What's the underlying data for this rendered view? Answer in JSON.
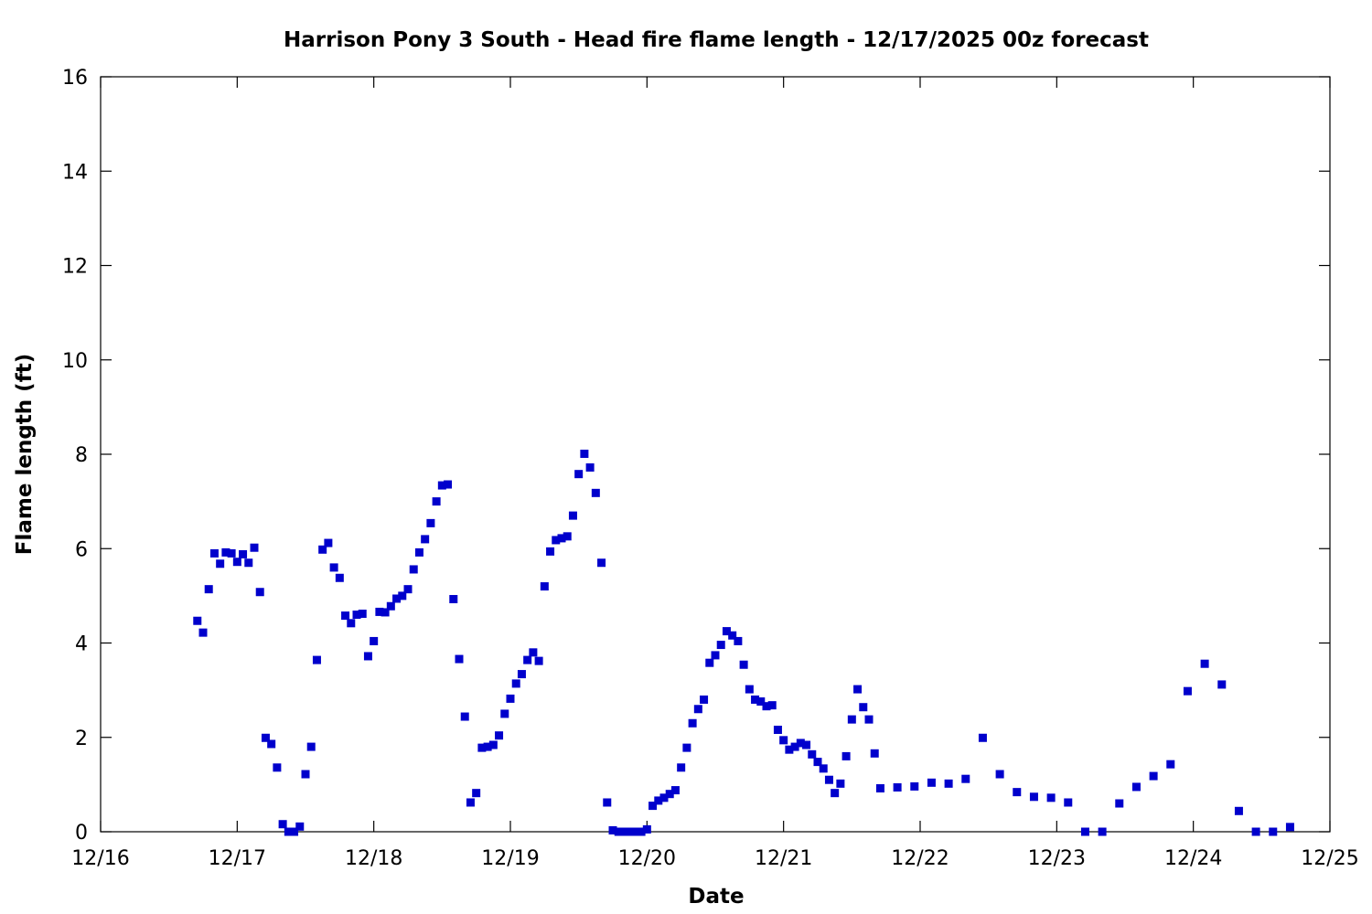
{
  "chart_data": {
    "type": "scatter",
    "title": "Harrison Pony 3 South - Head fire flame length - 12/17/2025 00z forecast",
    "xlabel": "Date",
    "ylabel": "Flame length (ft)",
    "xlim": [
      "12/16 00:00",
      "12/25 00:00"
    ],
    "ylim": [
      0,
      16
    ],
    "x_ticks": [
      "12/16",
      "12/17",
      "12/18",
      "12/19",
      "12/20",
      "12/21",
      "12/22",
      "12/23",
      "12/24",
      "12/25"
    ],
    "y_ticks": [
      "0",
      "2",
      "4",
      "6",
      "8",
      "10",
      "12",
      "14",
      "16"
    ],
    "grid": false,
    "marker": "square",
    "marker_color": "#0000cc",
    "series": [
      {
        "points": [
          [
            "12/16 17:00",
            4.47
          ],
          [
            "12/16 18:00",
            4.22
          ],
          [
            "12/16 19:00",
            5.14
          ],
          [
            "12/16 20:00",
            5.9
          ],
          [
            "12/16 21:00",
            5.68
          ],
          [
            "12/16 22:00",
            5.92
          ],
          [
            "12/16 23:00",
            5.9
          ],
          [
            "12/17 00:00",
            5.72
          ],
          [
            "12/17 01:00",
            5.88
          ],
          [
            "12/17 02:00",
            5.7
          ],
          [
            "12/17 03:00",
            6.02
          ],
          [
            "12/17 04:00",
            5.08
          ],
          [
            "12/17 05:00",
            1.99
          ],
          [
            "12/17 06:00",
            1.86
          ],
          [
            "12/17 07:00",
            1.36
          ],
          [
            "12/17 08:00",
            0.16
          ],
          [
            "12/17 09:00",
            0.0
          ],
          [
            "12/17 10:00",
            0.0
          ],
          [
            "12/17 11:00",
            0.11
          ],
          [
            "12/17 12:00",
            1.22
          ],
          [
            "12/17 13:00",
            1.8
          ],
          [
            "12/17 14:00",
            3.64
          ],
          [
            "12/17 15:00",
            5.98
          ],
          [
            "12/17 16:00",
            6.12
          ],
          [
            "12/17 17:00",
            5.6
          ],
          [
            "12/17 18:00",
            5.38
          ],
          [
            "12/17 19:00",
            4.58
          ],
          [
            "12/17 20:00",
            4.42
          ],
          [
            "12/17 21:00",
            4.6
          ],
          [
            "12/17 22:00",
            4.62
          ],
          [
            "12/17 23:00",
            3.72
          ],
          [
            "12/18 00:00",
            4.04
          ],
          [
            "12/18 01:00",
            4.66
          ],
          [
            "12/18 02:00",
            4.65
          ],
          [
            "12/18 03:00",
            4.78
          ],
          [
            "12/18 04:00",
            4.94
          ],
          [
            "12/18 05:00",
            5.0
          ],
          [
            "12/18 06:00",
            5.14
          ],
          [
            "12/18 07:00",
            5.56
          ],
          [
            "12/18 08:00",
            5.92
          ],
          [
            "12/18 09:00",
            6.2
          ],
          [
            "12/18 10:00",
            6.54
          ],
          [
            "12/18 11:00",
            7.0
          ],
          [
            "12/18 12:00",
            7.34
          ],
          [
            "12/18 13:00",
            7.36
          ],
          [
            "12/18 14:00",
            4.93
          ],
          [
            "12/18 15:00",
            3.66
          ],
          [
            "12/18 16:00",
            2.44
          ],
          [
            "12/18 17:00",
            0.62
          ],
          [
            "12/18 18:00",
            0.82
          ],
          [
            "12/18 19:00",
            1.78
          ],
          [
            "12/18 20:00",
            1.8
          ],
          [
            "12/18 21:00",
            1.84
          ],
          [
            "12/18 22:00",
            2.04
          ],
          [
            "12/18 23:00",
            2.5
          ],
          [
            "12/19 00:00",
            2.82
          ],
          [
            "12/19 01:00",
            3.14
          ],
          [
            "12/19 02:00",
            3.34
          ],
          [
            "12/19 03:00",
            3.64
          ],
          [
            "12/19 04:00",
            3.8
          ],
          [
            "12/19 05:00",
            3.62
          ],
          [
            "12/19 06:00",
            5.2
          ],
          [
            "12/19 07:00",
            5.94
          ],
          [
            "12/19 08:00",
            6.18
          ],
          [
            "12/19 09:00",
            6.22
          ],
          [
            "12/19 10:00",
            6.26
          ],
          [
            "12/19 11:00",
            6.7
          ],
          [
            "12/19 12:00",
            7.58
          ],
          [
            "12/19 13:00",
            8.01
          ],
          [
            "12/19 14:00",
            7.72
          ],
          [
            "12/19 15:00",
            7.18
          ],
          [
            "12/19 16:00",
            5.7
          ],
          [
            "12/19 17:00",
            0.62
          ],
          [
            "12/19 18:00",
            0.03
          ],
          [
            "12/19 19:00",
            0.0
          ],
          [
            "12/19 20:00",
            0.0
          ],
          [
            "12/19 21:00",
            0.0
          ],
          [
            "12/19 22:00",
            0.0
          ],
          [
            "12/19 23:00",
            0.0
          ],
          [
            "12/20 00:00",
            0.05
          ],
          [
            "12/20 01:00",
            0.55
          ],
          [
            "12/20 02:00",
            0.66
          ],
          [
            "12/20 03:00",
            0.72
          ],
          [
            "12/20 04:00",
            0.8
          ],
          [
            "12/20 05:00",
            0.88
          ],
          [
            "12/20 06:00",
            1.36
          ],
          [
            "12/20 07:00",
            1.78
          ],
          [
            "12/20 08:00",
            2.3
          ],
          [
            "12/20 09:00",
            2.6
          ],
          [
            "12/20 10:00",
            2.8
          ],
          [
            "12/20 11:00",
            3.58
          ],
          [
            "12/20 12:00",
            3.74
          ],
          [
            "12/20 13:00",
            3.96
          ],
          [
            "12/20 14:00",
            4.25
          ],
          [
            "12/20 15:00",
            4.16
          ],
          [
            "12/20 16:00",
            4.04
          ],
          [
            "12/20 17:00",
            3.54
          ],
          [
            "12/20 18:00",
            3.02
          ],
          [
            "12/20 19:00",
            2.8
          ],
          [
            "12/20 20:00",
            2.76
          ],
          [
            "12/20 21:00",
            2.66
          ],
          [
            "12/20 22:00",
            2.68
          ],
          [
            "12/20 23:00",
            2.16
          ],
          [
            "12/21 00:00",
            1.94
          ],
          [
            "12/21 01:00",
            1.74
          ],
          [
            "12/21 02:00",
            1.8
          ],
          [
            "12/21 03:00",
            1.88
          ],
          [
            "12/21 04:00",
            1.84
          ],
          [
            "12/21 05:00",
            1.64
          ],
          [
            "12/21 06:00",
            1.48
          ],
          [
            "12/21 07:00",
            1.34
          ],
          [
            "12/21 08:00",
            1.1
          ],
          [
            "12/21 09:00",
            0.82
          ],
          [
            "12/21 10:00",
            1.02
          ],
          [
            "12/21 11:00",
            1.6
          ],
          [
            "12/21 12:00",
            2.38
          ],
          [
            "12/21 13:00",
            3.02
          ],
          [
            "12/21 14:00",
            2.64
          ],
          [
            "12/21 15:00",
            2.38
          ],
          [
            "12/21 16:00",
            1.66
          ],
          [
            "12/21 17:00",
            0.92
          ],
          [
            "12/21 20:00",
            0.94
          ],
          [
            "12/21 23:00",
            0.96
          ],
          [
            "12/22 02:00",
            1.04
          ],
          [
            "12/22 05:00",
            1.02
          ],
          [
            "12/22 08:00",
            1.12
          ],
          [
            "12/22 11:00",
            1.99
          ],
          [
            "12/22 14:00",
            1.22
          ],
          [
            "12/22 17:00",
            0.84
          ],
          [
            "12/22 20:00",
            0.74
          ],
          [
            "12/22 23:00",
            0.72
          ],
          [
            "12/23 02:00",
            0.62
          ],
          [
            "12/23 05:00",
            0.0
          ],
          [
            "12/23 08:00",
            0.0
          ],
          [
            "12/23 11:00",
            0.6
          ],
          [
            "12/23 14:00",
            0.95
          ],
          [
            "12/23 17:00",
            1.18
          ],
          [
            "12/23 20:00",
            1.43
          ],
          [
            "12/23 23:00",
            2.98
          ],
          [
            "12/24 02:00",
            3.56
          ],
          [
            "12/24 05:00",
            3.12
          ],
          [
            "12/24 08:00",
            0.44
          ],
          [
            "12/24 11:00",
            0.0
          ],
          [
            "12/24 14:00",
            0.0
          ],
          [
            "12/24 17:00",
            0.1
          ]
        ]
      }
    ]
  }
}
